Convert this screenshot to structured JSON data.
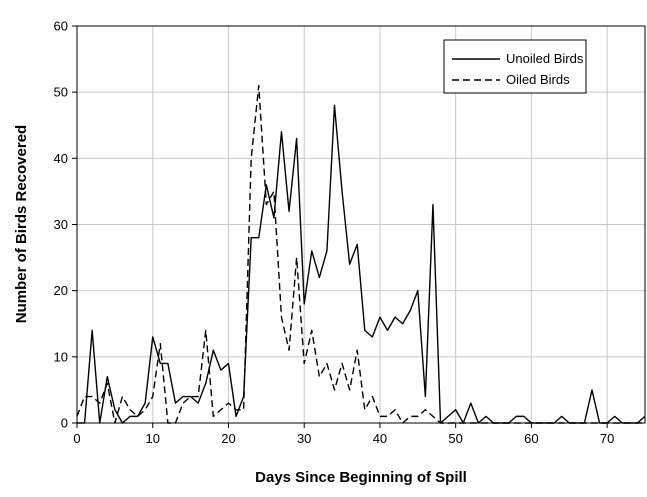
{
  "chart_data": {
    "type": "line",
    "xlabel": "Days Since Beginning of Spill",
    "ylabel": "Number of Birds Recovered",
    "xlim": [
      0,
      75
    ],
    "ylim": [
      0,
      60
    ],
    "xticks": [
      0,
      10,
      20,
      30,
      40,
      50,
      60,
      70
    ],
    "yticks": [
      0,
      10,
      20,
      30,
      40,
      50,
      60
    ],
    "grid": true,
    "legend_position": "top-right",
    "series": [
      {
        "name": "Unoiled Birds",
        "style": "solid",
        "color": "#000000",
        "points": [
          [
            0,
            0
          ],
          [
            1,
            0
          ],
          [
            2,
            14
          ],
          [
            3,
            0
          ],
          [
            4,
            7
          ],
          [
            5,
            2
          ],
          [
            6,
            0
          ],
          [
            7,
            1
          ],
          [
            8,
            1
          ],
          [
            9,
            3
          ],
          [
            10,
            13
          ],
          [
            10.5,
            11
          ],
          [
            11,
            9
          ],
          [
            12,
            9
          ],
          [
            13,
            3
          ],
          [
            14,
            4
          ],
          [
            15,
            4
          ],
          [
            16,
            3
          ],
          [
            17,
            6
          ],
          [
            18,
            11
          ],
          [
            19,
            8
          ],
          [
            20,
            9
          ],
          [
            21,
            1
          ],
          [
            22,
            4
          ],
          [
            23,
            28
          ],
          [
            24,
            28
          ],
          [
            25,
            36
          ],
          [
            26,
            31
          ],
          [
            27,
            44
          ],
          [
            28,
            32
          ],
          [
            29,
            43
          ],
          [
            30,
            18
          ],
          [
            31,
            26
          ],
          [
            32,
            22
          ],
          [
            33,
            26
          ],
          [
            34,
            48
          ],
          [
            35,
            35
          ],
          [
            36,
            24
          ],
          [
            37,
            27
          ],
          [
            38,
            14
          ],
          [
            39,
            13
          ],
          [
            40,
            16
          ],
          [
            41,
            14
          ],
          [
            42,
            16
          ],
          [
            43,
            15
          ],
          [
            44,
            17
          ],
          [
            45,
            20
          ],
          [
            46,
            4
          ],
          [
            47,
            33
          ],
          [
            48,
            0
          ],
          [
            49,
            1
          ],
          [
            50,
            2
          ],
          [
            51,
            0
          ],
          [
            52,
            3
          ],
          [
            53,
            0
          ],
          [
            54,
            1
          ],
          [
            55,
            0
          ],
          [
            56,
            0
          ],
          [
            57,
            0
          ],
          [
            58,
            1
          ],
          [
            59,
            1
          ],
          [
            60,
            0
          ],
          [
            61,
            0
          ],
          [
            62,
            0
          ],
          [
            63,
            0
          ],
          [
            64,
            1
          ],
          [
            65,
            0
          ],
          [
            66,
            0
          ],
          [
            67,
            0
          ],
          [
            68,
            5
          ],
          [
            69,
            0
          ],
          [
            70,
            0
          ],
          [
            71,
            1
          ],
          [
            72,
            0
          ],
          [
            73,
            0
          ],
          [
            74,
            0
          ],
          [
            75,
            1
          ]
        ]
      },
      {
        "name": "Oiled Birds",
        "style": "dashed",
        "color": "#000000",
        "points": [
          [
            0,
            1
          ],
          [
            1,
            4
          ],
          [
            2,
            4
          ],
          [
            3,
            3
          ],
          [
            4,
            6
          ],
          [
            5,
            0
          ],
          [
            6,
            4
          ],
          [
            7,
            2
          ],
          [
            8,
            1
          ],
          [
            9,
            2
          ],
          [
            10,
            4
          ],
          [
            11,
            12
          ],
          [
            12,
            0
          ],
          [
            13,
            0
          ],
          [
            14,
            3
          ],
          [
            15,
            4
          ],
          [
            16,
            4
          ],
          [
            17,
            14
          ],
          [
            18,
            1
          ],
          [
            19,
            2
          ],
          [
            20,
            3
          ],
          [
            21,
            2
          ],
          [
            22,
            2
          ],
          [
            23,
            40
          ],
          [
            24,
            51
          ],
          [
            25,
            33
          ],
          [
            26,
            35
          ],
          [
            27,
            16
          ],
          [
            28,
            11
          ],
          [
            29,
            25
          ],
          [
            30,
            9
          ],
          [
            31,
            14
          ],
          [
            32,
            7
          ],
          [
            33,
            9
          ],
          [
            34,
            5
          ],
          [
            35,
            9
          ],
          [
            36,
            5
          ],
          [
            37,
            11
          ],
          [
            38,
            2
          ],
          [
            39,
            4
          ],
          [
            40,
            1
          ],
          [
            41,
            1
          ],
          [
            42,
            2
          ],
          [
            43,
            0
          ],
          [
            44,
            1
          ],
          [
            45,
            1
          ],
          [
            46,
            2
          ],
          [
            47,
            1
          ],
          [
            48,
            0
          ],
          [
            75,
            0
          ]
        ]
      }
    ]
  }
}
